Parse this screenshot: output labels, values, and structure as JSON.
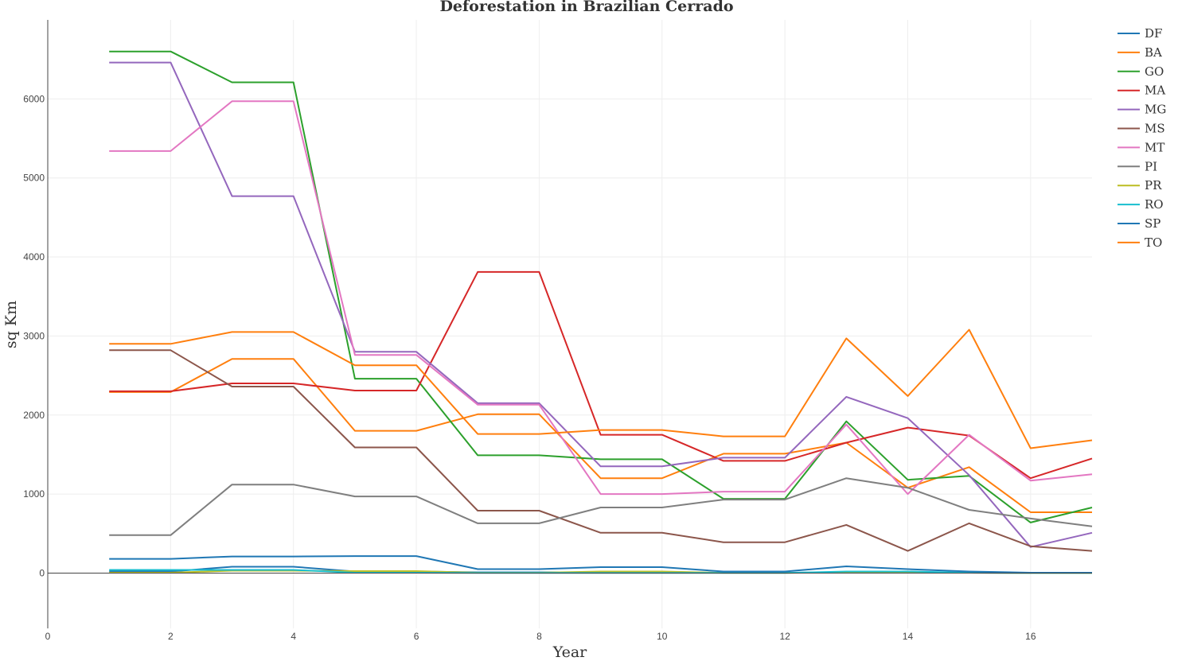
{
  "chart_data": {
    "type": "line",
    "title": "Deforestation in Brazilian Cerrado",
    "xlabel": "Year",
    "ylabel": "sq Km",
    "xlim": [
      0,
      17
    ],
    "ylim": [
      -700,
      7000
    ],
    "x_ticks": [
      0,
      2,
      4,
      6,
      8,
      10,
      12,
      14,
      16
    ],
    "y_ticks": [
      0,
      1000,
      2000,
      3000,
      4000,
      5000,
      6000
    ],
    "grid": true,
    "legend_position": "top-right",
    "x": [
      1,
      2,
      3,
      4,
      5,
      6,
      7,
      8,
      9,
      10,
      11,
      12,
      13,
      14,
      15,
      16,
      17
    ],
    "series": [
      {
        "name": "DF",
        "color": "#1f77b4",
        "values": [
          20,
          20,
          80,
          80,
          20,
          20,
          10,
          10,
          10,
          10,
          5,
          5,
          10,
          5,
          5,
          3,
          3
        ]
      },
      {
        "name": "BA",
        "color": "#ff7f0e",
        "values": [
          2290,
          2290,
          2710,
          2710,
          1800,
          1800,
          2010,
          2010,
          1200,
          1200,
          1510,
          1510,
          1650,
          1080,
          1340,
          770,
          770
        ]
      },
      {
        "name": "GO",
        "color": "#2ca02c",
        "values": [
          6600,
          6600,
          6210,
          6210,
          2460,
          2460,
          1490,
          1490,
          1440,
          1440,
          940,
          940,
          1920,
          1180,
          1230,
          640,
          830
        ]
      },
      {
        "name": "MA",
        "color": "#d62728",
        "values": [
          2300,
          2300,
          2400,
          2400,
          2310,
          2310,
          3810,
          3810,
          1750,
          1750,
          1420,
          1420,
          1650,
          1840,
          1740,
          1200,
          1450
        ]
      },
      {
        "name": "MG",
        "color": "#9467bd",
        "values": [
          6460,
          6460,
          4770,
          4770,
          2800,
          2800,
          2150,
          2150,
          1350,
          1350,
          1460,
          1460,
          2230,
          1960,
          1240,
          330,
          510
        ]
      },
      {
        "name": "MS",
        "color": "#8c564b",
        "values": [
          2820,
          2820,
          2360,
          2360,
          1590,
          1590,
          790,
          790,
          510,
          510,
          390,
          390,
          610,
          280,
          630,
          340,
          280
        ]
      },
      {
        "name": "MT",
        "color": "#e377c2",
        "values": [
          5340,
          5340,
          5970,
          5970,
          2760,
          2760,
          2130,
          2130,
          1000,
          1000,
          1030,
          1030,
          1880,
          1000,
          1750,
          1170,
          1250
        ]
      },
      {
        "name": "PI",
        "color": "#7f7f7f",
        "values": [
          480,
          480,
          1120,
          1120,
          970,
          970,
          630,
          630,
          830,
          830,
          930,
          930,
          1200,
          1080,
          800,
          690,
          590
        ]
      },
      {
        "name": "PR",
        "color": "#bcbd22",
        "values": [
          5,
          5,
          30,
          30,
          25,
          25,
          5,
          5,
          20,
          20,
          3,
          3,
          10,
          10,
          5,
          2,
          2
        ]
      },
      {
        "name": "RO",
        "color": "#17becf",
        "values": [
          40,
          40,
          40,
          40,
          5,
          5,
          3,
          3,
          3,
          3,
          2,
          2,
          20,
          20,
          5,
          2,
          2
        ]
      },
      {
        "name": "SP",
        "color": "#1f77b4",
        "values": [
          180,
          180,
          210,
          210,
          215,
          215,
          50,
          50,
          75,
          75,
          20,
          20,
          85,
          50,
          20,
          5,
          5
        ]
      },
      {
        "name": "TO",
        "color": "#ff7f0e",
        "values": [
          2900,
          2900,
          3050,
          3050,
          2630,
          2630,
          1760,
          1760,
          1810,
          1810,
          1730,
          1730,
          2970,
          2240,
          3080,
          1580,
          1680
        ]
      }
    ]
  }
}
